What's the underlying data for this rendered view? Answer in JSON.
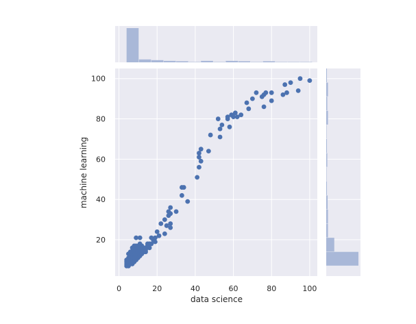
{
  "chart_data": {
    "type": "scatter",
    "title": "",
    "xlabel": "data science",
    "ylabel": "machine learning",
    "xlim": [
      -2,
      104
    ],
    "ylim": [
      2,
      105
    ],
    "xticks": [
      0,
      20,
      40,
      60,
      80,
      100
    ],
    "yticks": [
      20,
      40,
      60,
      80,
      100
    ],
    "grid": true,
    "colors": {
      "background": "#eaeaf2",
      "grid": "#ffffff",
      "point": "#4c72b0",
      "hist": "#a9b8d8"
    },
    "points": [
      [
        100,
        99
      ],
      [
        95,
        100
      ],
      [
        94,
        94
      ],
      [
        90,
        98
      ],
      [
        87,
        97
      ],
      [
        88,
        93
      ],
      [
        86,
        92
      ],
      [
        80,
        93
      ],
      [
        80,
        89
      ],
      [
        77,
        93
      ],
      [
        76,
        92
      ],
      [
        75,
        91
      ],
      [
        76,
        86
      ],
      [
        72,
        93
      ],
      [
        70,
        90
      ],
      [
        67,
        88
      ],
      [
        68,
        85
      ],
      [
        64,
        82
      ],
      [
        62,
        81
      ],
      [
        60,
        81
      ],
      [
        61,
        83
      ],
      [
        59,
        82
      ],
      [
        57,
        81
      ],
      [
        57,
        80
      ],
      [
        58,
        76
      ],
      [
        54,
        77
      ],
      [
        53,
        75
      ],
      [
        53,
        71
      ],
      [
        52,
        80
      ],
      [
        48,
        72
      ],
      [
        47,
        64
      ],
      [
        43,
        65
      ],
      [
        42,
        63
      ],
      [
        42,
        61
      ],
      [
        43,
        59
      ],
      [
        42,
        56
      ],
      [
        41,
        51
      ],
      [
        36,
        39
      ],
      [
        34,
        46
      ],
      [
        33,
        46
      ],
      [
        33,
        42
      ],
      [
        30,
        34
      ],
      [
        27,
        36
      ],
      [
        27,
        33
      ],
      [
        26,
        34
      ],
      [
        27,
        28
      ],
      [
        26,
        32
      ],
      [
        25,
        27
      ],
      [
        24,
        30
      ],
      [
        27,
        26
      ],
      [
        24,
        23
      ],
      [
        22,
        28
      ],
      [
        21,
        22
      ],
      [
        20,
        24
      ],
      [
        19,
        21
      ],
      [
        19,
        19
      ],
      [
        18,
        20
      ],
      [
        17,
        21
      ],
      [
        16,
        18
      ],
      [
        17,
        18
      ],
      [
        15,
        18
      ],
      [
        16,
        16
      ],
      [
        14,
        14
      ],
      [
        13,
        16
      ],
      [
        12,
        17
      ],
      [
        12,
        16
      ],
      [
        12,
        15
      ],
      [
        11,
        21
      ],
      [
        11,
        18
      ],
      [
        10,
        17
      ],
      [
        10,
        15
      ],
      [
        10,
        13
      ],
      [
        9,
        21
      ],
      [
        9,
        17
      ],
      [
        9,
        15
      ],
      [
        9,
        12
      ],
      [
        9,
        10
      ],
      [
        8,
        17
      ],
      [
        8,
        15
      ],
      [
        8,
        12
      ],
      [
        7,
        16
      ],
      [
        7,
        14
      ],
      [
        7,
        12
      ],
      [
        7,
        10
      ],
      [
        6,
        14
      ],
      [
        6,
        12
      ],
      [
        6,
        9
      ],
      [
        5,
        13
      ],
      [
        5,
        11
      ],
      [
        5,
        8
      ],
      [
        4,
        10
      ],
      [
        4,
        8
      ],
      [
        4,
        7
      ],
      [
        5,
        7
      ],
      [
        6,
        8
      ],
      [
        7,
        8
      ],
      [
        8,
        9
      ],
      [
        9,
        11
      ],
      [
        10,
        11
      ],
      [
        11,
        12
      ],
      [
        12,
        13
      ],
      [
        13,
        14
      ],
      [
        14,
        16
      ],
      [
        15,
        17
      ],
      [
        6,
        11
      ],
      [
        8,
        14
      ],
      [
        10,
        16
      ],
      [
        11,
        14
      ],
      [
        12,
        14
      ],
      [
        13,
        15
      ],
      [
        14,
        15
      ],
      [
        8,
        11
      ],
      [
        7,
        9
      ],
      [
        6,
        10
      ],
      [
        9,
        13
      ],
      [
        10,
        14
      ],
      [
        11,
        15
      ],
      [
        11,
        16
      ],
      [
        4,
        9
      ],
      [
        5,
        10
      ]
    ],
    "x_hist": {
      "bin_edges": [
        4,
        10.5,
        17,
        23.5,
        30,
        36.5,
        43,
        49.5,
        56,
        62.5,
        69,
        75.5,
        82,
        88.5,
        95,
        101.5
      ],
      "counts": [
        94,
        8,
        6,
        4,
        3,
        1,
        4,
        1,
        4,
        3,
        1,
        3,
        1,
        1,
        1
      ]
    },
    "y_hist": {
      "bin_edges": [
        7,
        14,
        21,
        28,
        35,
        42,
        49,
        56,
        63,
        70,
        77,
        84,
        91,
        98,
        105
      ],
      "counts": [
        92,
        23,
        5,
        5,
        4,
        2,
        1,
        3,
        2,
        1,
        5,
        3,
        5,
        2
      ]
    }
  }
}
